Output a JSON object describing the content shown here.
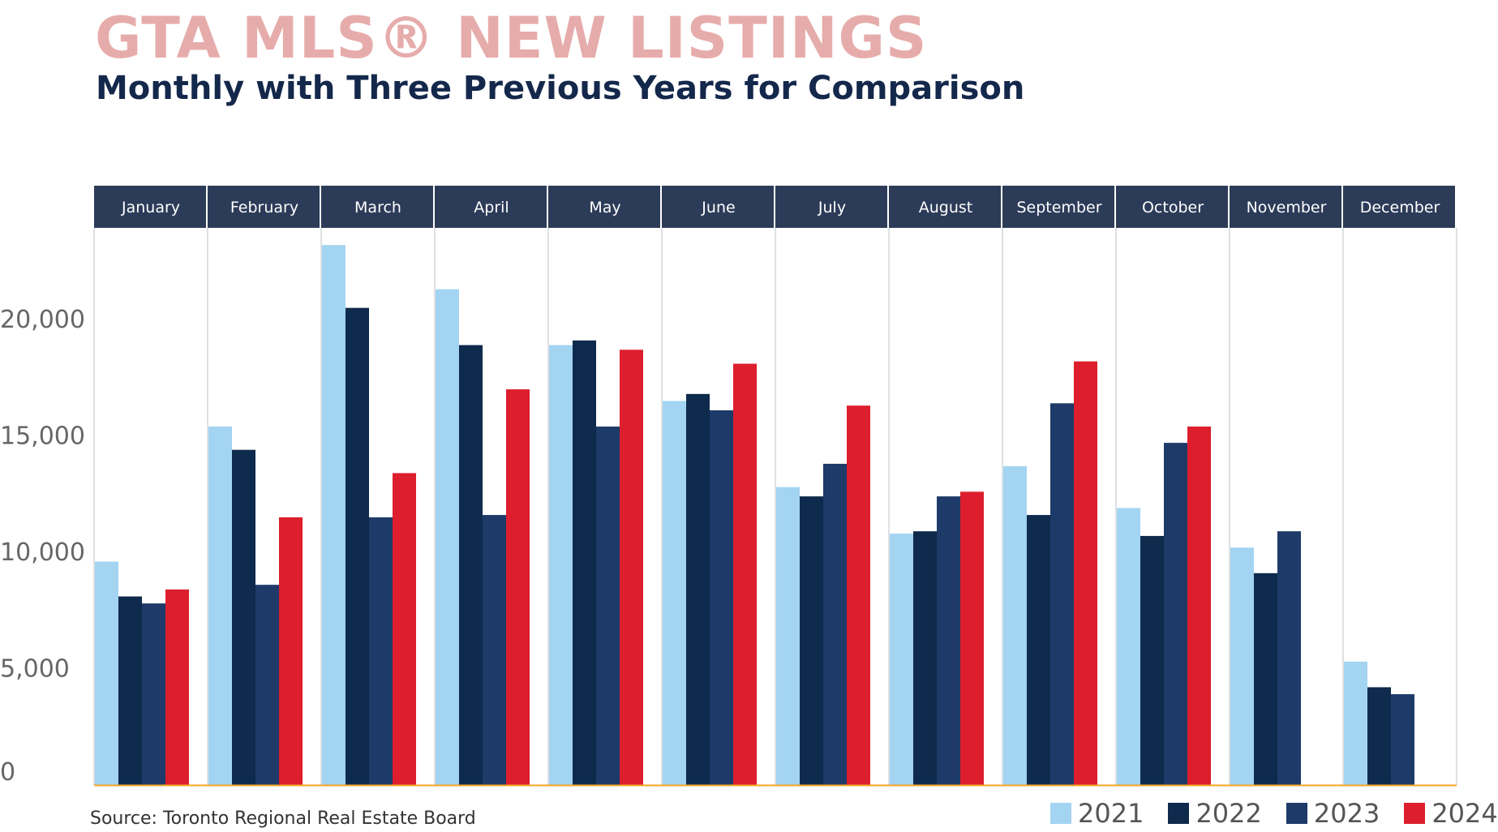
{
  "title": "GTA MLS® NEW LISTINGS",
  "subtitle": "Monthly with Three Previous Years for Comparison",
  "source": "Source: Toronto Regional Real Estate Board",
  "colors": {
    "2021": "#a3d4f2",
    "2022": "#0e2a4c",
    "2023": "#1e3a68",
    "2024": "#dc1e2d",
    "header_bg": "#2c3b58",
    "header_text": "#ffffff",
    "title": "#e6acab",
    "subtitle": "#14284b",
    "baseline": "#f5a623"
  },
  "chart_data": {
    "type": "bar",
    "title": "GTA MLS® NEW LISTINGS",
    "subtitle": "Monthly with Three Previous Years for Comparison",
    "xlabel": "",
    "ylabel": "",
    "categories": [
      "January",
      "February",
      "March",
      "April",
      "May",
      "June",
      "July",
      "August",
      "September",
      "October",
      "November",
      "December"
    ],
    "series": [
      {
        "name": "2021",
        "values": [
          9600,
          15400,
          23200,
          21300,
          18900,
          16500,
          12800,
          10800,
          13700,
          11900,
          10200,
          5300
        ]
      },
      {
        "name": "2022",
        "values": [
          8100,
          14400,
          20500,
          18900,
          19100,
          16800,
          12400,
          10900,
          11600,
          10700,
          9100,
          4200
        ]
      },
      {
        "name": "2023",
        "values": [
          7800,
          8600,
          11500,
          11600,
          15400,
          16100,
          13800,
          12400,
          16400,
          14700,
          10900,
          3900
        ]
      },
      {
        "name": "2024",
        "values": [
          8400,
          11500,
          13400,
          17000,
          18700,
          18100,
          16300,
          12600,
          18200,
          15400,
          null,
          null
        ]
      }
    ],
    "y_ticks": [
      "0",
      "5,000",
      "10,000",
      "15,000",
      "20,000"
    ],
    "y_tick_values": [
      0,
      5000,
      10000,
      15000,
      20000
    ],
    "ylim": [
      0,
      25000
    ],
    "grid": "vertical separators between months",
    "legend_position": "bottom-right"
  }
}
